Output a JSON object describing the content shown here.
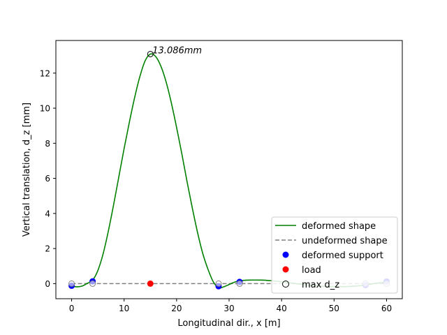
{
  "chart_data": {
    "type": "line",
    "xlabel": "Longitudinal dir., x [m]",
    "ylabel": "Vertical translation, d_z [mm]",
    "xlim": [
      -3,
      63
    ],
    "ylim": [
      13.86,
      -0.86
    ],
    "y_inverted": true,
    "xticks": [
      0,
      10,
      20,
      30,
      40,
      50,
      60
    ],
    "yticks": [
      0,
      2,
      4,
      6,
      8,
      10,
      12
    ],
    "grid": false,
    "legend_position": "lower-right",
    "legend": {
      "deformed_shape": "deformed shape",
      "undeformed_shape": "undeformed shape",
      "deformed_support": "deformed support",
      "load": "load",
      "max_dz": "max d_z"
    },
    "colors": {
      "deformed": "#008000",
      "undeformed": "#808080",
      "support": "#0000ff",
      "load": "#ff0000"
    },
    "series": [
      {
        "name": "deformed shape",
        "style": "solid",
        "points": [
          [
            0,
            -0.15
          ],
          [
            1,
            -0.18
          ],
          [
            2,
            -0.14
          ],
          [
            3,
            0.02
          ],
          [
            4,
            0.2
          ],
          [
            5,
            0.75
          ],
          [
            6,
            1.7
          ],
          [
            7,
            3.0
          ],
          [
            8,
            4.5
          ],
          [
            9,
            6.1
          ],
          [
            10,
            7.7
          ],
          [
            11,
            9.2
          ],
          [
            12,
            10.6
          ],
          [
            13,
            11.8
          ],
          [
            14,
            12.7
          ],
          [
            15,
            13.086
          ],
          [
            16,
            12.95
          ],
          [
            17,
            12.4
          ],
          [
            18,
            11.5
          ],
          [
            19,
            10.3
          ],
          [
            20,
            8.9
          ],
          [
            21,
            7.4
          ],
          [
            22,
            5.8
          ],
          [
            23,
            4.3
          ],
          [
            24,
            2.9
          ],
          [
            25,
            1.7
          ],
          [
            26,
            0.8
          ],
          [
            27,
            0.1
          ],
          [
            28,
            -0.23
          ],
          [
            29,
            -0.18
          ],
          [
            30,
            -0.05
          ],
          [
            31,
            0.08
          ],
          [
            32,
            0.16
          ],
          [
            34,
            0.2
          ],
          [
            36,
            0.2
          ],
          [
            38,
            0.17
          ],
          [
            40,
            0.1
          ],
          [
            42,
            0.03
          ],
          [
            44,
            -0.05
          ],
          [
            46,
            -0.11
          ],
          [
            48,
            -0.15
          ],
          [
            50,
            -0.17
          ],
          [
            52,
            -0.17
          ],
          [
            54,
            -0.14
          ],
          [
            56,
            -0.08
          ],
          [
            58,
            0.02
          ],
          [
            60,
            0.07
          ]
        ]
      },
      {
        "name": "undeformed shape",
        "style": "dashed",
        "points": [
          [
            0,
            0
          ],
          [
            60,
            0
          ]
        ]
      }
    ],
    "deformed_support": [
      [
        0,
        -0.12
      ],
      [
        4,
        0.13
      ],
      [
        28,
        -0.15
      ],
      [
        32,
        0.1
      ],
      [
        56,
        -0.08
      ],
      [
        60,
        0.12
      ]
    ],
    "undeformed_support": [
      [
        0,
        0
      ],
      [
        4,
        0
      ],
      [
        28,
        0
      ],
      [
        32,
        0
      ],
      [
        56,
        0
      ],
      [
        60,
        0
      ]
    ],
    "load": [
      [
        15,
        0
      ]
    ],
    "max_dz": {
      "x": 15,
      "y": 13.086,
      "label": "13.086mm"
    }
  }
}
